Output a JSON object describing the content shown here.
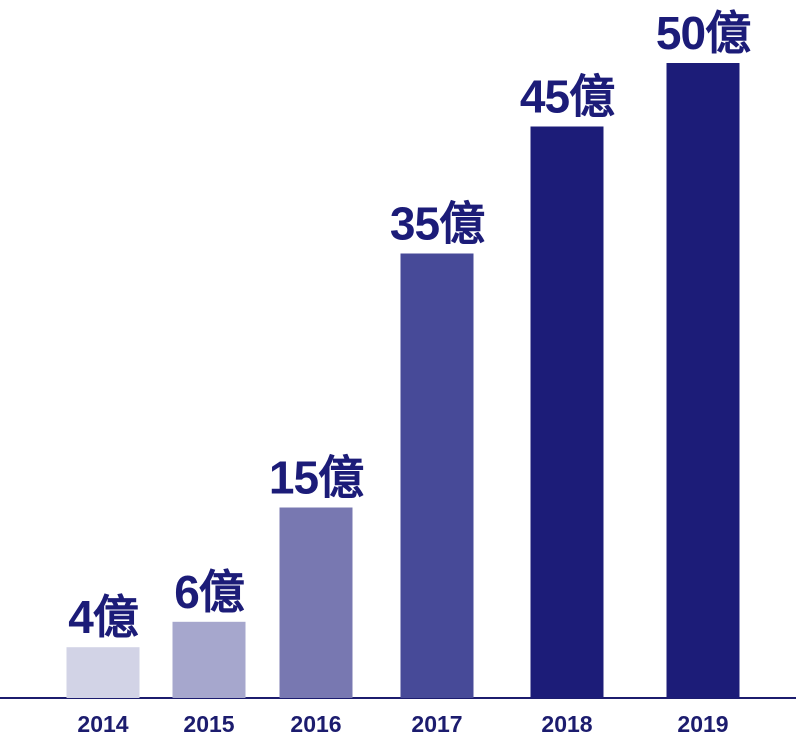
{
  "chart_data": {
    "type": "bar",
    "categories": [
      "2014",
      "2015",
      "2016",
      "2017",
      "2018",
      "2019"
    ],
    "values": [
      4,
      6,
      15,
      35,
      45,
      50
    ],
    "value_labels": [
      "4億",
      "6億",
      "15億",
      "35億",
      "45億",
      "50億"
    ],
    "colors": [
      "#d2d3e6",
      "#a6a7cd",
      "#7878b1",
      "#474a98",
      "#1c1c78",
      "#1c1c78"
    ],
    "ylim": [
      0,
      50
    ]
  }
}
